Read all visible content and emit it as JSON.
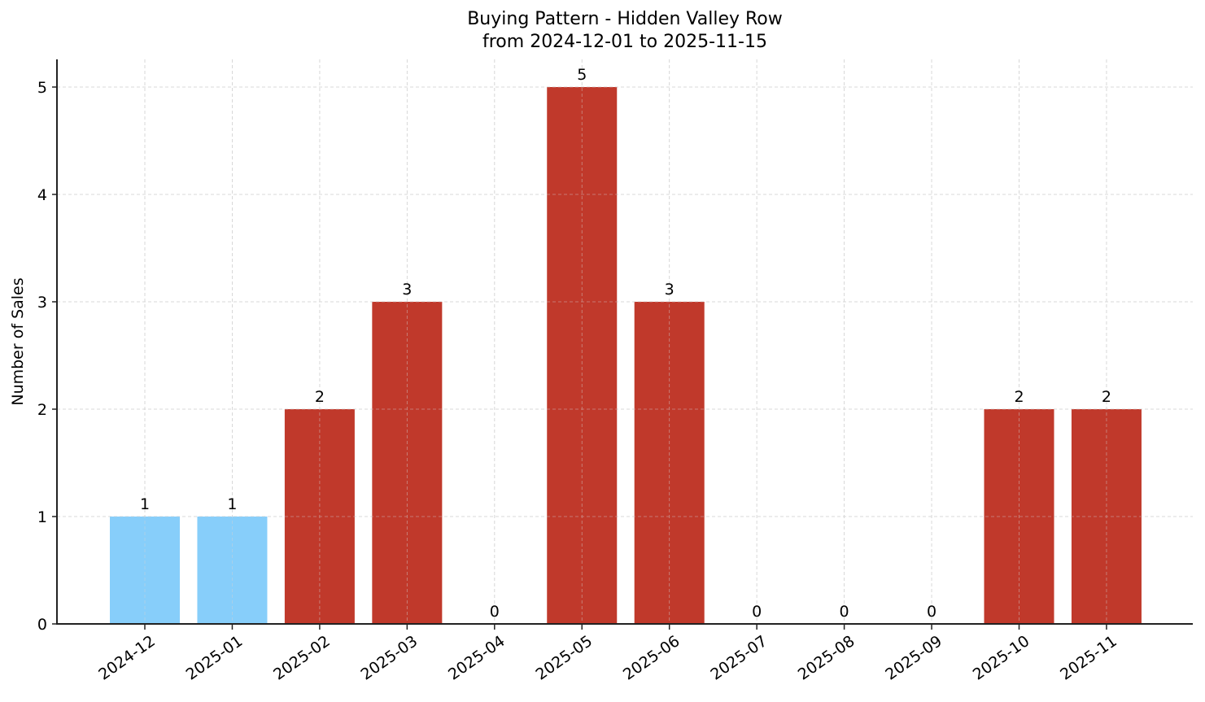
{
  "chart_data": {
    "type": "bar",
    "title": "Buying Pattern - Hidden Valley Row",
    "subtitle": "from 2024-12-01 to 2025-11-15",
    "xlabel": "",
    "ylabel": "Number of Sales",
    "categories": [
      "2024-12",
      "2025-01",
      "2025-02",
      "2025-03",
      "2025-04",
      "2025-05",
      "2025-06",
      "2025-07",
      "2025-08",
      "2025-09",
      "2025-10",
      "2025-11"
    ],
    "values": [
      1,
      1,
      2,
      3,
      0,
      5,
      3,
      0,
      0,
      0,
      2,
      2
    ],
    "bar_colors": [
      "#87CEFA",
      "#87CEFA",
      "#C0392B",
      "#C0392B",
      "#C0392B",
      "#C0392B",
      "#C0392B",
      "#C0392B",
      "#C0392B",
      "#C0392B",
      "#C0392B",
      "#C0392B"
    ],
    "data_labels": [
      "1",
      "1",
      "2",
      "3",
      "0",
      "5",
      "3",
      "0",
      "0",
      "0",
      "2",
      "2"
    ],
    "yticks": [
      0,
      1,
      2,
      3,
      4,
      5
    ],
    "ylim": [
      0,
      5.25
    ],
    "grid": true,
    "grid_style": "dashed",
    "legend": null
  },
  "colors": {
    "highlight_bar": "#87CEFA",
    "default_bar": "#C0392B",
    "grid": "#d3d3d3",
    "axis": "#222222"
  }
}
